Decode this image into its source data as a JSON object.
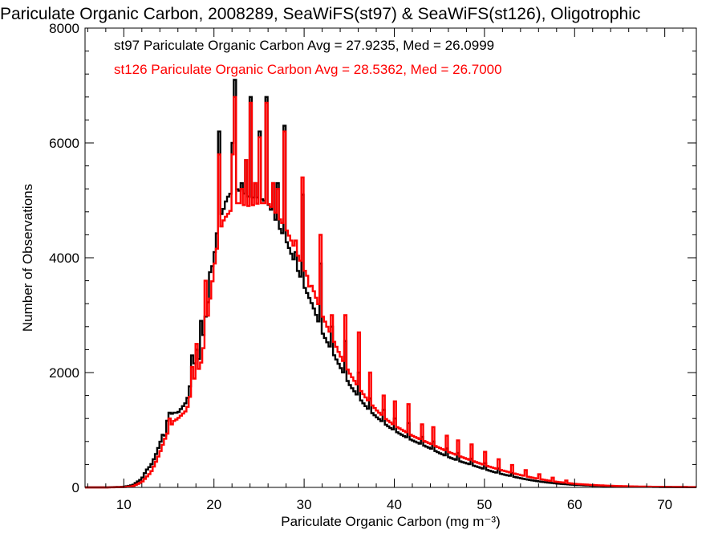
{
  "chart_data": {
    "type": "histogram",
    "title": "Pariculate Organic Carbon, 2008289, SeaWiFS(st97) & SeaWiFS(st126), Oligotrophic",
    "xlabel": "Pariculate Organic Carbon (mg m⁻³)",
    "ylabel": "Number of Observations",
    "xlim": [
      5.7,
      73.5
    ],
    "ylim": [
      0,
      8000
    ],
    "x_ticks": [
      10,
      20,
      30,
      40,
      50,
      60,
      70
    ],
    "x_tick_labels": [
      "10",
      "20",
      "30",
      "40",
      "50",
      "60",
      "70"
    ],
    "y_ticks": [
      0,
      2000,
      4000,
      6000,
      8000
    ],
    "y_tick_labels": [
      "0",
      "2000",
      "4000",
      "6000",
      "8000"
    ],
    "grid": false,
    "legend_position": "top-left",
    "annotations": [
      {
        "text": "st97 Pariculate Organic Carbon Avg = 27.9235, Med = 26.0999",
        "color": "#000000"
      },
      {
        "text": "st126 Pariculate Organic Carbon Avg = 28.5362, Med = 26.7000",
        "color": "#ff0000"
      }
    ],
    "bin_width": 0.25,
    "series": [
      {
        "name": "st97",
        "color": "#000000",
        "points": [
          [
            5.7,
            0
          ],
          [
            8,
            0
          ],
          [
            10,
            10
          ],
          [
            11,
            40
          ],
          [
            12,
            150
          ],
          [
            12.5,
            300
          ],
          [
            13,
            380
          ],
          [
            13.5,
            550
          ],
          [
            14,
            760
          ],
          [
            14.5,
            1000
          ],
          [
            15,
            1250
          ],
          [
            15.5,
            1300
          ],
          [
            16,
            1300
          ],
          [
            17,
            1500
          ],
          [
            17.5,
            1900
          ],
          [
            18,
            2300
          ],
          [
            18.5,
            2200
          ],
          [
            19,
            2900
          ],
          [
            19.5,
            3400
          ],
          [
            20,
            4100
          ],
          [
            20.5,
            4600
          ],
          [
            21,
            4850
          ],
          [
            21.5,
            5050
          ],
          [
            22,
            5150
          ],
          [
            22.5,
            5200
          ],
          [
            23,
            5150
          ],
          [
            23.5,
            5100
          ],
          [
            24,
            5050
          ],
          [
            25,
            5050
          ],
          [
            26,
            4950
          ],
          [
            27,
            4600
          ],
          [
            28,
            4300
          ],
          [
            29,
            3900
          ],
          [
            30,
            3500
          ],
          [
            31,
            3150
          ],
          [
            32,
            2700
          ],
          [
            33,
            2400
          ],
          [
            34,
            2100
          ],
          [
            35,
            1800
          ],
          [
            36,
            1580
          ],
          [
            37,
            1380
          ],
          [
            38,
            1230
          ],
          [
            39,
            1100
          ],
          [
            40,
            990
          ],
          [
            41,
            900
          ],
          [
            42,
            820
          ],
          [
            43,
            750
          ],
          [
            44,
            680
          ],
          [
            45,
            600
          ],
          [
            46,
            530
          ],
          [
            47,
            470
          ],
          [
            48,
            420
          ],
          [
            49,
            370
          ],
          [
            50,
            320
          ],
          [
            51,
            270
          ],
          [
            52,
            230
          ],
          [
            53,
            195
          ],
          [
            54,
            160
          ],
          [
            55,
            130
          ],
          [
            56,
            105
          ],
          [
            57,
            85
          ],
          [
            58,
            68
          ],
          [
            59,
            55
          ],
          [
            60,
            45
          ],
          [
            62,
            30
          ],
          [
            64,
            20
          ],
          [
            66,
            14
          ],
          [
            68,
            10
          ],
          [
            70,
            7
          ],
          [
            73.5,
            4
          ]
        ],
        "spikes": [
          [
            14.5,
            900
          ],
          [
            15,
            1300
          ],
          [
            17.5,
            2300
          ],
          [
            18,
            2400
          ],
          [
            18.5,
            2900
          ],
          [
            19.5,
            3750
          ],
          [
            20,
            4100
          ],
          [
            20.5,
            6200
          ],
          [
            21,
            4850
          ],
          [
            22,
            6000
          ],
          [
            22.25,
            7100
          ],
          [
            23,
            5300
          ],
          [
            23.5,
            5700
          ],
          [
            24,
            6800
          ],
          [
            24.5,
            5300
          ],
          [
            25,
            6200
          ],
          [
            25.75,
            6800
          ],
          [
            26.5,
            5300
          ],
          [
            27,
            5300
          ],
          [
            27.75,
            6300
          ],
          [
            29,
            4100
          ],
          [
            29.75,
            5100
          ],
          [
            30.5,
            3300
          ],
          [
            31.75,
            3900
          ],
          [
            33,
            2800
          ],
          [
            34.5,
            2550
          ],
          [
            36,
            2000
          ],
          [
            37.25,
            1550
          ],
          [
            38.75,
            1350
          ],
          [
            40,
            1200
          ],
          [
            41.5,
            1120
          ],
          [
            43,
            880
          ],
          [
            44.25,
            800
          ],
          [
            45.75,
            680
          ],
          [
            47,
            600
          ],
          [
            48.5,
            500
          ],
          [
            50,
            420
          ],
          [
            51.5,
            330
          ],
          [
            53,
            250
          ]
        ]
      },
      {
        "name": "st126",
        "color": "#ff0000",
        "points": [
          [
            5.7,
            0
          ],
          [
            8,
            0
          ],
          [
            10,
            5
          ],
          [
            11,
            20
          ],
          [
            12,
            90
          ],
          [
            12.5,
            180
          ],
          [
            13,
            260
          ],
          [
            13.5,
            420
          ],
          [
            14,
            600
          ],
          [
            14.5,
            820
          ],
          [
            15,
            1000
          ],
          [
            15.5,
            1150
          ],
          [
            16,
            1200
          ],
          [
            17,
            1350
          ],
          [
            17.5,
            1700
          ],
          [
            18,
            2000
          ],
          [
            18.5,
            2100
          ],
          [
            19,
            2600
          ],
          [
            19.5,
            3200
          ],
          [
            20,
            3800
          ],
          [
            20.5,
            4350
          ],
          [
            21,
            4650
          ],
          [
            21.5,
            4750
          ],
          [
            22,
            4850
          ],
          [
            22.5,
            4950
          ],
          [
            23,
            4950
          ],
          [
            23.5,
            4900
          ],
          [
            24,
            4900
          ],
          [
            25,
            4950
          ],
          [
            26,
            4950
          ],
          [
            27,
            4750
          ],
          [
            28,
            4500
          ],
          [
            29,
            4150
          ],
          [
            30,
            3800
          ],
          [
            31,
            3450
          ],
          [
            32,
            3000
          ],
          [
            33,
            2650
          ],
          [
            34,
            2300
          ],
          [
            35,
            2000
          ],
          [
            36,
            1750
          ],
          [
            37,
            1530
          ],
          [
            38,
            1350
          ],
          [
            39,
            1200
          ],
          [
            40,
            1080
          ],
          [
            41,
            990
          ],
          [
            42,
            900
          ],
          [
            43,
            830
          ],
          [
            44,
            760
          ],
          [
            45,
            690
          ],
          [
            46,
            620
          ],
          [
            47,
            560
          ],
          [
            48,
            500
          ],
          [
            49,
            445
          ],
          [
            50,
            390
          ],
          [
            51,
            340
          ],
          [
            52,
            295
          ],
          [
            53,
            255
          ],
          [
            54,
            215
          ],
          [
            55,
            180
          ],
          [
            56,
            150
          ],
          [
            57,
            122
          ],
          [
            58,
            98
          ],
          [
            59,
            80
          ],
          [
            60,
            62
          ],
          [
            62,
            42
          ],
          [
            64,
            28
          ],
          [
            66,
            19
          ],
          [
            68,
            13
          ],
          [
            70,
            9
          ],
          [
            73.5,
            5
          ]
        ],
        "spikes": [
          [
            15,
            1200
          ],
          [
            17.5,
            2100
          ],
          [
            18,
            2500
          ],
          [
            19,
            3600
          ],
          [
            20,
            3900
          ],
          [
            20.5,
            5800
          ],
          [
            21,
            4650
          ],
          [
            22,
            5800
          ],
          [
            22.25,
            6800
          ],
          [
            23,
            5200
          ],
          [
            23.5,
            5700
          ],
          [
            24,
            6700
          ],
          [
            24.5,
            5300
          ],
          [
            25,
            6100
          ],
          [
            25.75,
            6700
          ],
          [
            26.5,
            5300
          ],
          [
            27,
            5200
          ],
          [
            27.75,
            6200
          ],
          [
            29,
            4300
          ],
          [
            29.75,
            5400
          ],
          [
            30.5,
            3500
          ],
          [
            31.75,
            4400
          ],
          [
            33,
            3000
          ],
          [
            34.5,
            3000
          ],
          [
            36,
            2700
          ],
          [
            37.25,
            2000
          ],
          [
            38.75,
            1600
          ],
          [
            40,
            1500
          ],
          [
            41.5,
            1450
          ],
          [
            43,
            1100
          ],
          [
            44.25,
            1050
          ],
          [
            45.75,
            900
          ],
          [
            47,
            820
          ],
          [
            48.5,
            750
          ],
          [
            50,
            620
          ],
          [
            51.5,
            490
          ],
          [
            53,
            390
          ],
          [
            54.5,
            300
          ],
          [
            56,
            230
          ],
          [
            57.5,
            170
          ],
          [
            59,
            120
          ]
        ]
      }
    ]
  }
}
